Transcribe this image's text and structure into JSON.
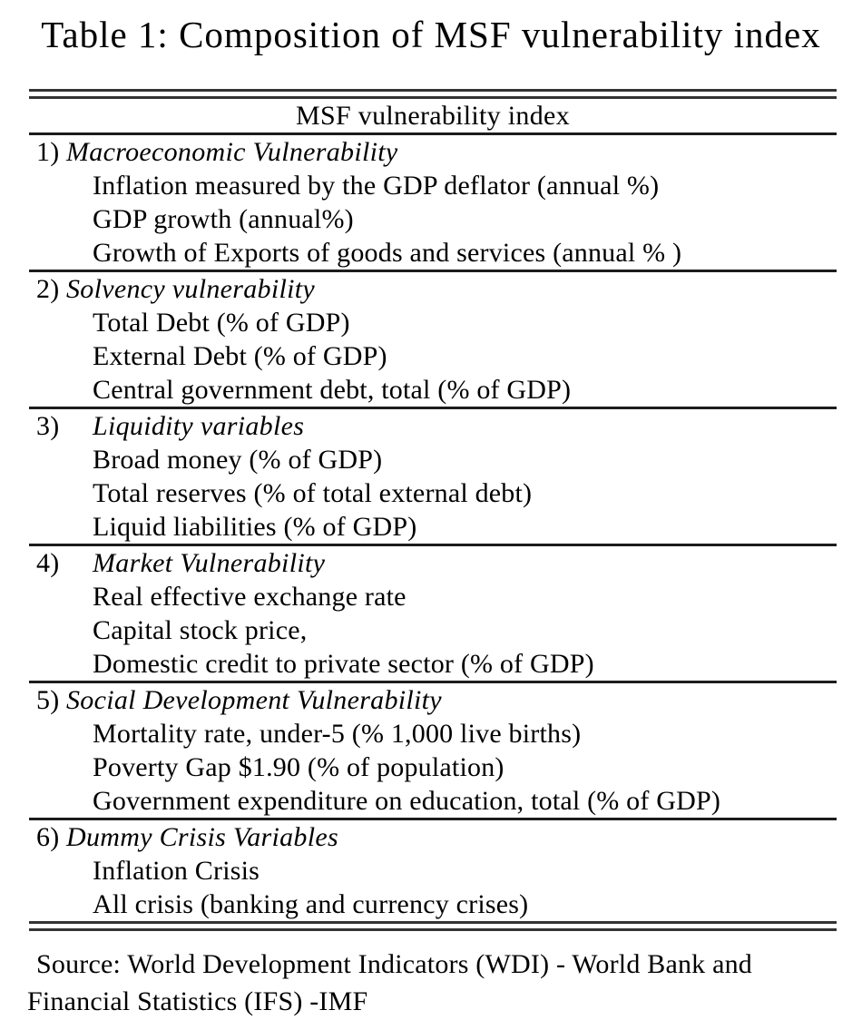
{
  "title": "Table 1: Composition of MSF vulnerability index",
  "table": {
    "header": "MSF vulnerability index",
    "sections": [
      {
        "number": "1)",
        "title": "Macroeconomic Vulnerability",
        "items": [
          "Inflation measured by the GDP deflator (annual %)",
          "GDP growth (annual%)",
          "Growth of Exports of goods and services (annual % )"
        ]
      },
      {
        "number": "2)",
        "title": "Solvency vulnerability",
        "items": [
          "Total Debt (% of GDP)",
          "External Debt (% of GDP)",
          "Central government debt, total (% of GDP)"
        ]
      },
      {
        "number": "3)",
        "title": "Liquidity variables",
        "items": [
          "Broad money (% of GDP)",
          "Total reserves (% of total external debt)",
          "Liquid liabilities (% of GDP)"
        ]
      },
      {
        "number": "4)",
        "title": "Market Vulnerability",
        "items": [
          "Real effective exchange rate",
          "Capital stock price,",
          "Domestic credit to private sector (% of GDP)"
        ]
      },
      {
        "number": "5)",
        "title": "Social Development Vulnerability",
        "items": [
          "Mortality rate, under-5 (% 1,000 live births)",
          "Poverty Gap $1.90 (% of population)",
          "Government expenditure on education, total (% of GDP)"
        ]
      },
      {
        "number": "6)",
        "title": "Dummy Crisis Variables",
        "items": [
          "Inflation Crisis",
          "All crisis (banking and currency crises)"
        ]
      }
    ]
  },
  "source": {
    "line1": "Source: World Development Indicators (WDI) - World Bank and",
    "line2": "Financial Statistics (IFS) -IMF"
  },
  "colors": {
    "text": "#000000",
    "rule": "#1c1c1c",
    "background": "#ffffff"
  }
}
